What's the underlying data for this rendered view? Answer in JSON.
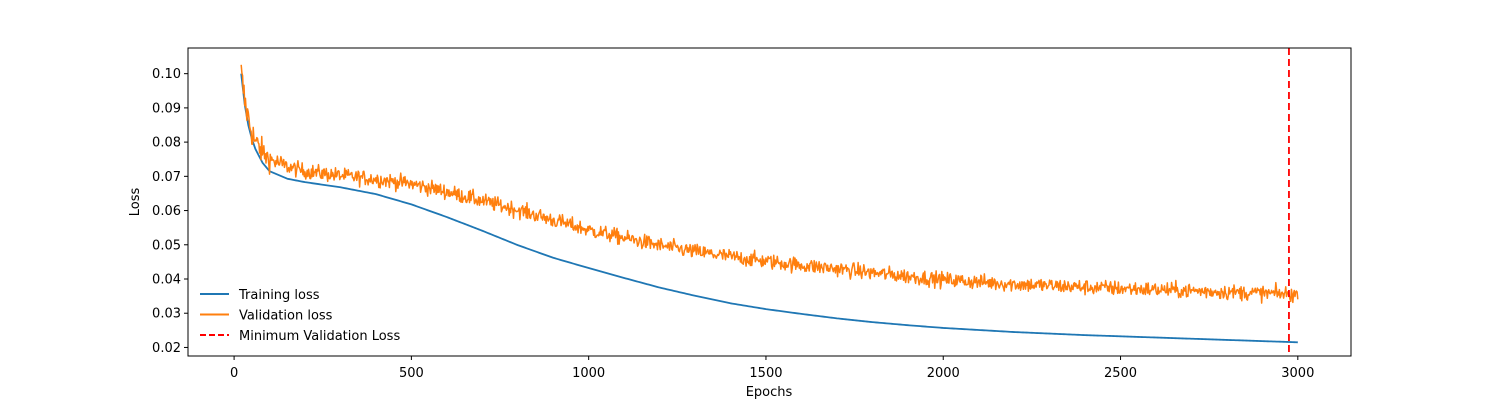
{
  "chart_data": {
    "type": "line",
    "title": "",
    "xlabel": "Epochs",
    "ylabel": "Loss",
    "xlim": [
      -130,
      3150
    ],
    "ylim": [
      0.0175,
      0.1075
    ],
    "xticks": [
      0,
      500,
      1000,
      1500,
      2000,
      2500,
      3000
    ],
    "yticks": [
      0.02,
      0.03,
      0.04,
      0.05,
      0.06,
      0.07,
      0.08,
      0.09,
      0.1
    ],
    "ytick_labels": [
      "0.02",
      "0.03",
      "0.04",
      "0.05",
      "0.06",
      "0.07",
      "0.08",
      "0.09",
      "0.10"
    ],
    "grid": false,
    "legend_position": "lower-left",
    "series": [
      {
        "name": "Training loss",
        "color": "#1f77b4",
        "x": [
          20,
          30,
          40,
          50,
          60,
          80,
          100,
          150,
          200,
          300,
          400,
          500,
          600,
          700,
          800,
          900,
          1000,
          1100,
          1200,
          1300,
          1400,
          1500,
          1600,
          1700,
          1800,
          1900,
          2000,
          2200,
          2400,
          2600,
          2800,
          3000
        ],
        "y": [
          0.1,
          0.091,
          0.085,
          0.081,
          0.078,
          0.074,
          0.0715,
          0.0693,
          0.0683,
          0.0668,
          0.0648,
          0.0618,
          0.0581,
          0.0541,
          0.0499,
          0.0462,
          0.0432,
          0.0403,
          0.0375,
          0.0351,
          0.0329,
          0.0312,
          0.0298,
          0.0285,
          0.0274,
          0.0265,
          0.0257,
          0.0245,
          0.0236,
          0.0229,
          0.0222,
          0.0215
        ]
      },
      {
        "name": "Validation loss",
        "color": "#ff7f0e",
        "noise": 0.0011,
        "x": [
          20,
          30,
          40,
          50,
          60,
          80,
          100,
          150,
          200,
          300,
          400,
          500,
          600,
          700,
          800,
          900,
          1000,
          1100,
          1200,
          1300,
          1400,
          1500,
          1600,
          1700,
          1800,
          1900,
          2000,
          2200,
          2400,
          2600,
          2800,
          3000
        ],
        "y": [
          0.1,
          0.092,
          0.087,
          0.083,
          0.08,
          0.077,
          0.075,
          0.0728,
          0.0715,
          0.0702,
          0.0692,
          0.0678,
          0.0655,
          0.0628,
          0.0602,
          0.0572,
          0.0543,
          0.052,
          0.0498,
          0.048,
          0.0465,
          0.0452,
          0.044,
          0.043,
          0.0418,
          0.0408,
          0.0398,
          0.0385,
          0.0376,
          0.0369,
          0.0362,
          0.0355
        ]
      },
      {
        "name": "Minimum Validation Loss",
        "color": "#ff0000",
        "style": "dashed",
        "vertical_x": 2975
      }
    ]
  }
}
